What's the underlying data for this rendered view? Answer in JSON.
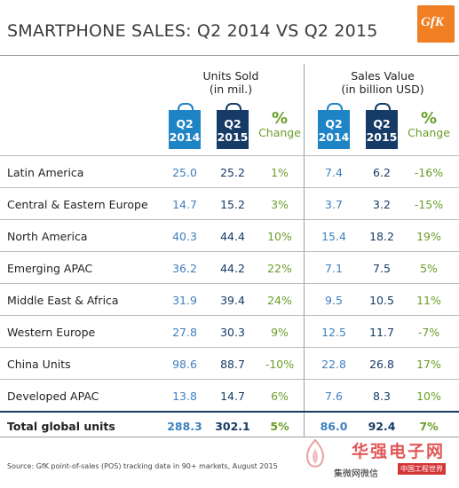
{
  "title": "SMARTPHONE SALES: Q2 2014 VS Q2 2015",
  "logo_text": "GfK",
  "colors": {
    "q2_2014": "#1e84c5",
    "q2_2015": "#163b66",
    "change": "#6a9e2a",
    "logo": "#f07e23"
  },
  "groups": {
    "units": {
      "line1": "Units Sold",
      "line2": "(in mil.)"
    },
    "sales": {
      "line1": "Sales Value",
      "line2": "(in billion USD)"
    }
  },
  "columns": {
    "q2_2014": {
      "q": "Q2",
      "year": "2014"
    },
    "q2_2015": {
      "q": "Q2",
      "year": "2015"
    },
    "change": {
      "sym": "%",
      "label": "Change"
    }
  },
  "rows": [
    {
      "region": "Latin America",
      "units_2014": "25.0",
      "units_2015": "25.2",
      "units_change": "1%",
      "sales_2014": "7.4",
      "sales_2015": "6.2",
      "sales_change": "-16%"
    },
    {
      "region": "Central & Eastern Europe",
      "units_2014": "14.7",
      "units_2015": "15.2",
      "units_change": "3%",
      "sales_2014": "3.7",
      "sales_2015": "3.2",
      "sales_change": "-15%"
    },
    {
      "region": "North America",
      "units_2014": "40.3",
      "units_2015": "44.4",
      "units_change": "10%",
      "sales_2014": "15.4",
      "sales_2015": "18.2",
      "sales_change": "19%"
    },
    {
      "region": "Emerging APAC",
      "units_2014": "36.2",
      "units_2015": "44.2",
      "units_change": "22%",
      "sales_2014": "7.1",
      "sales_2015": "7.5",
      "sales_change": "5%"
    },
    {
      "region": "Middle East & Africa",
      "units_2014": "31.9",
      "units_2015": "39.4",
      "units_change": "24%",
      "sales_2014": "9.5",
      "sales_2015": "10.5",
      "sales_change": "11%"
    },
    {
      "region": "Western Europe",
      "units_2014": "27.8",
      "units_2015": "30.3",
      "units_change": "9%",
      "sales_2014": "12.5",
      "sales_2015": "11.7",
      "sales_change": "-7%"
    },
    {
      "region": "China Units",
      "units_2014": "98.6",
      "units_2015": "88.7",
      "units_change": "-10%",
      "sales_2014": "22.8",
      "sales_2015": "26.8",
      "sales_change": "17%"
    },
    {
      "region": "Developed APAC",
      "units_2014": "13.8",
      "units_2015": "14.7",
      "units_change": "6%",
      "sales_2014": "7.6",
      "sales_2015": "8.3",
      "sales_change": "10%"
    }
  ],
  "total": {
    "region": "Total global units",
    "units_2014": "288.3",
    "units_2015": "302.1",
    "units_change": "5%",
    "sales_2014": "86.0",
    "sales_2015": "92.4",
    "sales_change": "7%"
  },
  "source": "Source: GfK point-of-sales (POS) tracking data in 90+ markets, August 2015",
  "watermark": {
    "line1": "华强电子网",
    "line2": "集微网微信",
    "line3": "中国工程世界"
  }
}
